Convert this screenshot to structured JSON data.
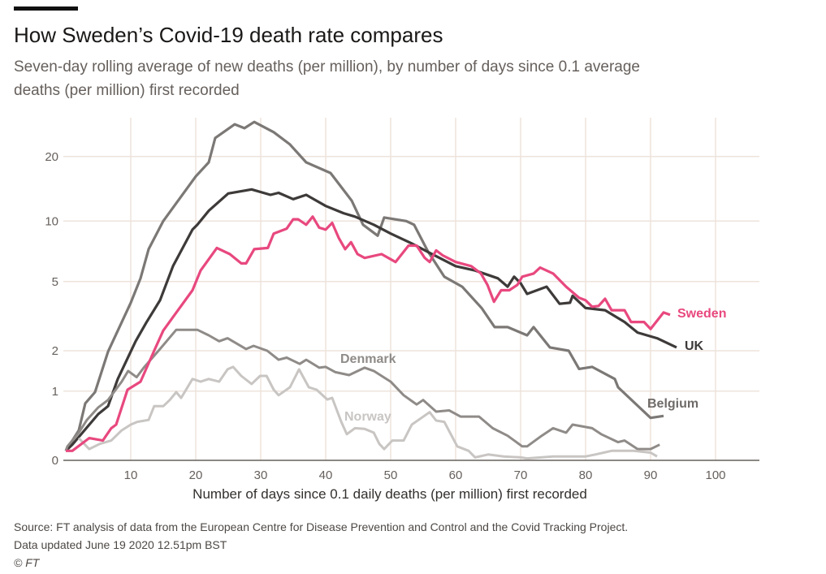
{
  "header": {
    "title": "How Sweden’s Covid-19 death rate compares",
    "subtitle": "Seven-day rolling average of new deaths (per million), by number of days since 0.1 average deaths (per million) first recorded"
  },
  "footer": {
    "source": "Source: FT analysis of data from the European Centre for Disease Prevention and Control and the Covid Tracking Project.",
    "updated": "Data updated June 19 2020 12.51pm BST",
    "copyright": "© FT"
  },
  "chart_data": {
    "type": "line",
    "title": "How Sweden’s Covid-19 death rate compares",
    "xlabel": "Number of days since 0.1 daily deaths (per million) first recorded",
    "ylabel": "",
    "xlim": [
      0,
      106
    ],
    "ylim": [
      0,
      30
    ],
    "yscale": "log(y+1)",
    "grid": true,
    "xticks": [
      "10",
      "20",
      "30",
      "40",
      "50",
      "60",
      "70",
      "80",
      "90",
      "100"
    ],
    "xtick_values": [
      10,
      20,
      30,
      40,
      50,
      60,
      70,
      80,
      90,
      100
    ],
    "yticks": [
      "0",
      "1",
      "2",
      "5",
      "10",
      "20"
    ],
    "ytick_values": [
      0,
      1,
      2,
      5,
      10,
      20
    ],
    "series": [
      {
        "name": "Belgium",
        "color": "#7b7876",
        "points": [
          [
            0,
            0.1
          ],
          [
            2,
            0.35
          ],
          [
            3,
            0.77
          ],
          [
            4.5,
            0.98
          ],
          [
            6.5,
            1.97
          ],
          [
            10,
            3.85
          ],
          [
            11.5,
            5.2
          ],
          [
            12.75,
            7.3
          ],
          [
            15,
            10
          ],
          [
            20,
            16.2
          ],
          [
            22,
            18.8
          ],
          [
            23,
            24.3
          ],
          [
            26,
            28
          ],
          [
            27.5,
            26.9
          ],
          [
            29,
            28.7
          ],
          [
            32,
            25.8
          ],
          [
            34.5,
            22.7
          ],
          [
            37,
            18.8
          ],
          [
            40.75,
            16.8
          ],
          [
            44,
            12.5
          ],
          [
            45.75,
            9.6
          ],
          [
            48,
            8.5
          ],
          [
            49,
            10.4
          ],
          [
            52.4,
            10
          ],
          [
            53.6,
            9.6
          ],
          [
            55.75,
            7.1
          ],
          [
            58.25,
            5.3
          ],
          [
            61,
            4.7
          ],
          [
            64,
            3.6
          ],
          [
            66,
            2.8
          ],
          [
            68,
            2.8
          ],
          [
            71,
            2.5
          ],
          [
            72,
            2.8
          ],
          [
            74.5,
            2.1
          ],
          [
            77.4,
            2.0
          ],
          [
            79,
            1.5
          ],
          [
            81,
            1.55
          ],
          [
            84.5,
            1.26
          ],
          [
            85,
            1.08
          ],
          [
            90,
            0.53
          ],
          [
            92,
            0.56
          ]
        ]
      },
      {
        "name": "UK",
        "color": "#3d3a39",
        "points": [
          [
            0,
            0.1
          ],
          [
            1,
            0.17
          ],
          [
            5,
            0.59
          ],
          [
            6.5,
            0.72
          ],
          [
            8,
            1.26
          ],
          [
            10.75,
            2.3
          ],
          [
            12.4,
            2.98
          ],
          [
            14.5,
            3.97
          ],
          [
            16.5,
            6.0
          ],
          [
            19.5,
            9.1
          ],
          [
            20.25,
            9.6
          ],
          [
            22,
            11.2
          ],
          [
            25,
            13.5
          ],
          [
            28.6,
            14.1
          ],
          [
            31.5,
            13.3
          ],
          [
            32.75,
            13.6
          ],
          [
            35,
            12.7
          ],
          [
            37,
            13.3
          ],
          [
            40,
            11.8
          ],
          [
            42.75,
            10.9
          ],
          [
            44.5,
            10.5
          ],
          [
            47.4,
            9.6
          ],
          [
            50,
            8.7
          ],
          [
            53.2,
            7.8
          ],
          [
            56,
            7.0
          ],
          [
            60,
            6.0
          ],
          [
            63,
            5.7
          ],
          [
            66.5,
            5.2
          ],
          [
            68,
            4.7
          ],
          [
            69,
            5.3
          ],
          [
            70,
            4.9
          ],
          [
            71,
            4.3
          ],
          [
            74,
            4.7
          ],
          [
            76,
            3.8
          ],
          [
            77.6,
            3.85
          ],
          [
            78,
            4.2
          ],
          [
            80,
            3.6
          ],
          [
            83,
            3.5
          ],
          [
            86,
            3.0
          ],
          [
            88,
            2.6
          ],
          [
            91,
            2.4
          ],
          [
            94,
            2.1
          ]
        ]
      },
      {
        "name": "Denmark",
        "color": "#8f8b88",
        "points": [
          [
            0,
            0.1
          ],
          [
            0.25,
            0.15
          ],
          [
            2,
            0.32
          ],
          [
            3.25,
            0.5
          ],
          [
            5,
            0.7
          ],
          [
            6.5,
            0.83
          ],
          [
            8.6,
            1.2
          ],
          [
            9.6,
            1.45
          ],
          [
            10.9,
            1.3
          ],
          [
            12,
            1.53
          ],
          [
            14.5,
            2.05
          ],
          [
            17,
            2.7
          ],
          [
            19.5,
            2.7
          ],
          [
            20.25,
            2.7
          ],
          [
            22,
            2.5
          ],
          [
            23.6,
            2.3
          ],
          [
            24.9,
            2.4
          ],
          [
            27.75,
            2.05
          ],
          [
            28.9,
            2.15
          ],
          [
            31,
            2.0
          ],
          [
            32.75,
            1.74
          ],
          [
            34,
            1.8
          ],
          [
            36,
            1.63
          ],
          [
            37,
            1.74
          ],
          [
            39,
            1.53
          ],
          [
            40,
            1.55
          ],
          [
            41.5,
            1.42
          ],
          [
            43.6,
            1.35
          ],
          [
            46,
            1.53
          ],
          [
            47.4,
            1.45
          ],
          [
            50,
            1.2
          ],
          [
            52,
            0.92
          ],
          [
            54,
            0.75
          ],
          [
            55,
            0.83
          ],
          [
            57,
            0.63
          ],
          [
            59,
            0.65
          ],
          [
            60.75,
            0.55
          ],
          [
            63.6,
            0.55
          ],
          [
            65.7,
            0.38
          ],
          [
            68,
            0.28
          ],
          [
            70.25,
            0.15
          ],
          [
            71,
            0.15
          ],
          [
            73.25,
            0.28
          ],
          [
            75,
            0.38
          ],
          [
            77,
            0.32
          ],
          [
            78,
            0.43
          ],
          [
            81,
            0.38
          ],
          [
            82.4,
            0.3
          ],
          [
            85,
            0.2
          ],
          [
            86,
            0.22
          ],
          [
            88,
            0.12
          ],
          [
            90,
            0.12
          ],
          [
            91.4,
            0.17
          ]
        ]
      },
      {
        "name": "Norway",
        "color": "#c8c5c3",
        "points": [
          [
            2,
            0.25
          ],
          [
            3.6,
            0.12
          ],
          [
            5.25,
            0.18
          ],
          [
            7,
            0.22
          ],
          [
            8.6,
            0.35
          ],
          [
            10,
            0.43
          ],
          [
            11,
            0.47
          ],
          [
            12.75,
            0.5
          ],
          [
            13.6,
            0.72
          ],
          [
            15,
            0.72
          ],
          [
            16,
            0.83
          ],
          [
            17,
            0.98
          ],
          [
            17.75,
            0.87
          ],
          [
            19.5,
            1.26
          ],
          [
            20.75,
            1.2
          ],
          [
            22,
            1.26
          ],
          [
            23.6,
            1.2
          ],
          [
            24.9,
            1.49
          ],
          [
            25.75,
            1.55
          ],
          [
            27,
            1.33
          ],
          [
            28.6,
            1.15
          ],
          [
            29.9,
            1.33
          ],
          [
            30.9,
            1.33
          ],
          [
            32,
            1.03
          ],
          [
            32.75,
            0.92
          ],
          [
            34.5,
            1.08
          ],
          [
            35.9,
            1.49
          ],
          [
            37.4,
            1.08
          ],
          [
            38.6,
            1.03
          ],
          [
            40.25,
            0.84
          ],
          [
            41,
            0.87
          ],
          [
            42.4,
            0.47
          ],
          [
            43.25,
            0.3
          ],
          [
            44.5,
            0.38
          ],
          [
            46,
            0.37
          ],
          [
            47.4,
            0.32
          ],
          [
            48.25,
            0.18
          ],
          [
            49,
            0.12
          ],
          [
            50.25,
            0.22
          ],
          [
            52,
            0.22
          ],
          [
            53.25,
            0.43
          ],
          [
            56,
            0.62
          ],
          [
            57,
            0.49
          ],
          [
            58.25,
            0.47
          ],
          [
            60.25,
            0.15
          ],
          [
            62,
            0.1
          ],
          [
            63,
            0.03
          ],
          [
            65,
            0.06
          ],
          [
            67.4,
            0.04
          ],
          [
            70,
            0.03
          ],
          [
            71,
            0.02
          ],
          [
            75,
            0.04
          ],
          [
            80,
            0.04
          ],
          [
            81.5,
            0.06
          ],
          [
            84,
            0.1
          ],
          [
            87.4,
            0.1
          ],
          [
            90,
            0.08
          ],
          [
            91,
            0.04
          ]
        ]
      },
      {
        "name": "Sweden",
        "color": "#e8487f",
        "points": [
          [
            0,
            0.1
          ],
          [
            1,
            0.1
          ],
          [
            3.6,
            0.25
          ],
          [
            5.7,
            0.22
          ],
          [
            7,
            0.38
          ],
          [
            7.75,
            0.43
          ],
          [
            9.5,
            1.03
          ],
          [
            11.5,
            1.2
          ],
          [
            13.6,
            2.0
          ],
          [
            15,
            2.67
          ],
          [
            16.5,
            3.2
          ],
          [
            17.75,
            3.7
          ],
          [
            19.5,
            4.5
          ],
          [
            20.75,
            5.7
          ],
          [
            23.25,
            7.4
          ],
          [
            25.25,
            6.9
          ],
          [
            27,
            6.2
          ],
          [
            27.75,
            6.2
          ],
          [
            29,
            7.3
          ],
          [
            31.1,
            7.4
          ],
          [
            32,
            8.7
          ],
          [
            34,
            9.2
          ],
          [
            35,
            10.2
          ],
          [
            35.75,
            10.2
          ],
          [
            37,
            9.6
          ],
          [
            38,
            10.5
          ],
          [
            39,
            9.3
          ],
          [
            40,
            9.1
          ],
          [
            41,
            9.8
          ],
          [
            42,
            8.3
          ],
          [
            43,
            7.3
          ],
          [
            43.9,
            7.9
          ],
          [
            44.9,
            6.9
          ],
          [
            46,
            6.6
          ],
          [
            48.6,
            6.9
          ],
          [
            50.75,
            6.3
          ],
          [
            52.75,
            7.6
          ],
          [
            54,
            7.6
          ],
          [
            55.25,
            6.6
          ],
          [
            56,
            6.3
          ],
          [
            57,
            7.2
          ],
          [
            58,
            6.8
          ],
          [
            60,
            6.3
          ],
          [
            62.4,
            6.0
          ],
          [
            63.9,
            5.5
          ],
          [
            64.9,
            4.8
          ],
          [
            65.9,
            3.9
          ],
          [
            67,
            4.5
          ],
          [
            68.25,
            4.5
          ],
          [
            69.5,
            4.8
          ],
          [
            70.25,
            5.3
          ],
          [
            72,
            5.5
          ],
          [
            73,
            5.9
          ],
          [
            75,
            5.5
          ],
          [
            77,
            4.7
          ],
          [
            79,
            4.1
          ],
          [
            80,
            3.97
          ],
          [
            81,
            3.66
          ],
          [
            82,
            3.7
          ],
          [
            83,
            4.05
          ],
          [
            84,
            3.5
          ],
          [
            86,
            3.5
          ],
          [
            87,
            3.0
          ],
          [
            89,
            3.0
          ],
          [
            90,
            2.73
          ],
          [
            92,
            3.4
          ],
          [
            93,
            3.3
          ]
        ]
      }
    ],
    "annotations": [
      {
        "text": "Sweden",
        "series": "Sweden"
      },
      {
        "text": "UK",
        "series": "UK"
      },
      {
        "text": "Belgium",
        "series": "Belgium"
      },
      {
        "text": "Denmark",
        "series": "Denmark"
      },
      {
        "text": "Norway",
        "series": "Norway"
      }
    ]
  }
}
